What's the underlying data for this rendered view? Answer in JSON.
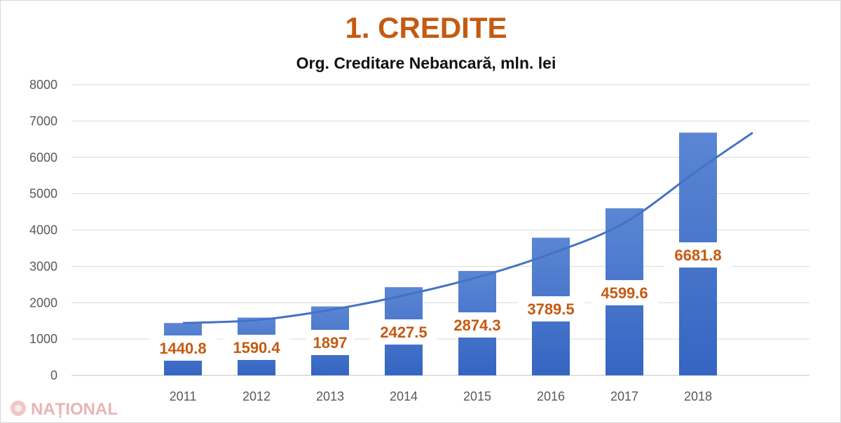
{
  "chart_data": {
    "type": "bar",
    "title": "1. CREDITE",
    "subtitle": "Org. Creditare Nebancară,  mln. lei",
    "categories": [
      "2011",
      "2012",
      "2013",
      "2014",
      "2015",
      "2016",
      "2017",
      "2018"
    ],
    "values": [
      1440.8,
      1590.4,
      1897,
      2427.5,
      2874.3,
      3789.5,
      4599.6,
      6681.8
    ],
    "data_labels": [
      "1440.8",
      "1590.4",
      "1897",
      "2427.5",
      "2874.3",
      "3789.5",
      "4599.6",
      "6681.8"
    ],
    "trendline": {
      "type": "line",
      "smooth": true,
      "values": [
        1440.8,
        1520,
        1800,
        2200,
        2700,
        3350,
        4200,
        5650
      ],
      "end_value": 6680
    },
    "yticks": [
      "0",
      "1000",
      "2000",
      "3000",
      "4000",
      "5000",
      "6000",
      "7000",
      "8000"
    ],
    "ylim": [
      0,
      8000
    ],
    "grid": true,
    "colors": {
      "bar_top": "#5b86d4",
      "bar_bottom": "#3565c2",
      "line": "#4472c4",
      "title": "#c55a11",
      "label": "#c55a11"
    }
  },
  "watermark": {
    "text": "NAȚIONAL"
  }
}
